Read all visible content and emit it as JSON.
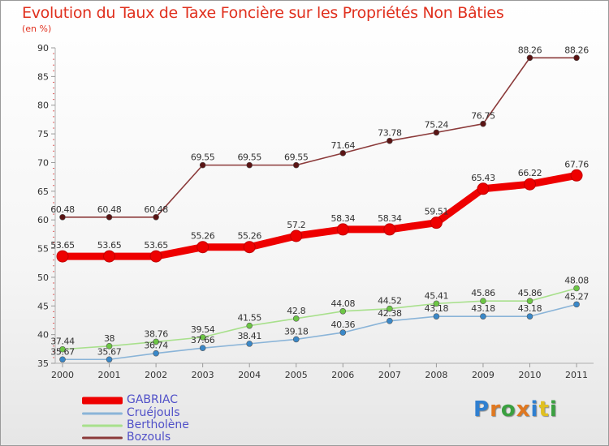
{
  "title": "Evolution du Taux de Taxe Foncière sur les Propriétés Non Bâties",
  "unit_label": "(en %)",
  "brand": "Proxiti",
  "chart_data": {
    "type": "line",
    "title": "Evolution du Taux de Taxe Foncière sur les Propriétés Non Bâties",
    "ylabel": "(en %)",
    "xlabel": "",
    "categories": [
      "2000",
      "2001",
      "2002",
      "2003",
      "2004",
      "2005",
      "2006",
      "2007",
      "2008",
      "2009",
      "2010",
      "2011"
    ],
    "ylim": [
      35,
      90
    ],
    "yticks": [
      35,
      40,
      45,
      50,
      55,
      60,
      65,
      70,
      75,
      80,
      85,
      90
    ],
    "series": [
      {
        "name": "Bozouls",
        "color": "#8b3a3a",
        "marker": "#5a1414",
        "values": [
          60.48,
          60.48,
          60.48,
          69.55,
          69.55,
          69.55,
          71.64,
          73.78,
          75.24,
          76.75,
          88.26,
          88.26
        ],
        "labels": [
          "60.48",
          "60.48",
          "60.48",
          "69.55",
          "69.55",
          "69.55",
          "71.64",
          "73.78",
          "75.24",
          "76.75",
          "88.26",
          "88.26"
        ]
      },
      {
        "name": "GABRIAC",
        "color": "#ee0000",
        "marker": "#ee0000",
        "values": [
          53.65,
          53.65,
          53.65,
          55.26,
          55.26,
          57.2,
          58.34,
          58.34,
          59.51,
          65.43,
          66.22,
          67.76
        ],
        "labels": [
          "53.65",
          "53.65",
          "53.65",
          "55.26",
          "55.26",
          "57.2",
          "58.34",
          "58.34",
          "59.51",
          "65.43",
          "66.22",
          "67.76"
        ]
      },
      {
        "name": "Bertholène",
        "color": "#a8e08c",
        "marker": "#6cc644",
        "values": [
          37.44,
          38,
          38.76,
          39.54,
          41.55,
          42.8,
          44.08,
          44.52,
          45.41,
          45.86,
          45.86,
          48.08
        ],
        "labels": [
          "37.44",
          "38",
          "38.76",
          "39.54",
          "41.55",
          "42.8",
          "44.08",
          "44.52",
          "45.41",
          "45.86",
          "45.86",
          "48.08"
        ]
      },
      {
        "name": "Cruéjouls",
        "color": "#8ab4d8",
        "marker": "#3a88c8",
        "values": [
          35.67,
          35.67,
          36.74,
          37.66,
          38.41,
          39.18,
          40.36,
          42.38,
          43.18,
          43.18,
          43.18,
          45.27
        ],
        "labels": [
          "35.67",
          "35.67",
          "36.74",
          "37.66",
          "38.41",
          "39.18",
          "40.36",
          "42.38",
          "43.18",
          "43.18",
          "43.18",
          "45.27"
        ]
      }
    ]
  },
  "legend": [
    {
      "name": "GABRIAC",
      "color": "#ee0000"
    },
    {
      "name": "Cruéjouls",
      "color": "#8ab4d8"
    },
    {
      "name": "Bertholène",
      "color": "#a8e08c"
    },
    {
      "name": "Bozouls",
      "color": "#8b3a3a"
    }
  ]
}
